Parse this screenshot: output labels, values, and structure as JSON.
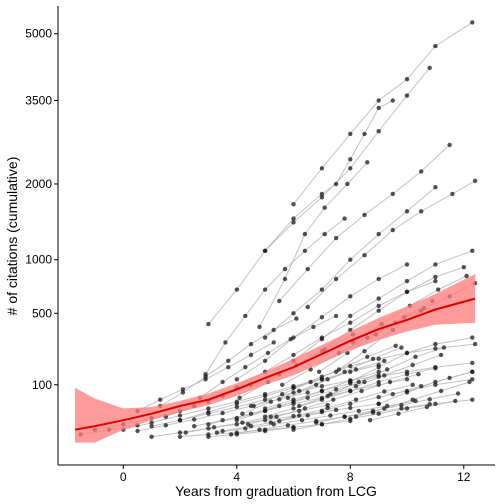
{
  "chart_data": {
    "type": "scatter",
    "title": "",
    "xlabel": "Years from graduation from LCG",
    "ylabel": "# of citations (cumulative)",
    "y_scale": "sqrt",
    "xlim": [
      -2.3,
      13.1
    ],
    "ylim": [
      -15,
      5700
    ],
    "x_ticks": [
      0,
      4,
      8,
      12
    ],
    "y_ticks": [
      100,
      500,
      1000,
      2000,
      3500,
      5000
    ],
    "grid": false,
    "legend": "none",
    "colors": {
      "points": "#1a1a1a",
      "lines": "#b3b3b3",
      "trend": "#e00000",
      "band": "#ff7a7a"
    },
    "trend": {
      "x": [
        -1.7,
        -1,
        0,
        1,
        2,
        3,
        4,
        5,
        6,
        7,
        8,
        9,
        10,
        11,
        12.4
      ],
      "y": [
        5,
        8,
        15,
        25,
        40,
        55,
        85,
        125,
        170,
        235,
        310,
        385,
        450,
        530,
        620
      ]
    },
    "band_upper": [
      90,
      58,
      35,
      38,
      52,
      72,
      105,
      150,
      210,
      285,
      370,
      465,
      555,
      660,
      850
    ],
    "band_lower": [
      0,
      0,
      5,
      15,
      28,
      42,
      65,
      100,
      135,
      190,
      255,
      315,
      370,
      415,
      430
    ],
    "series": [
      {
        "x": [
          6,
          7,
          8,
          9,
          10,
          11,
          12.3
        ],
        "y": [
          1700,
          2250,
          2850,
          3500,
          3950,
          4700,
          5280
        ]
      },
      {
        "x": [
          5,
          6,
          7,
          8,
          9,
          10,
          10.8
        ],
        "y": [
          1100,
          1450,
          1800,
          2250,
          2900,
          3600,
          4200
        ]
      },
      {
        "x": [
          3,
          4,
          5,
          6,
          7,
          7.5,
          8,
          8.5,
          9,
          9.5
        ],
        "y": [
          420,
          700,
          1100,
          1500,
          1850,
          2000,
          2400,
          2850,
          3350,
          3500
        ]
      },
      {
        "x": [
          4.8,
          5.7,
          6.4,
          7.1,
          7.9,
          8.6
        ],
        "y": [
          400,
          800,
          1300,
          1650,
          2000,
          2350
        ]
      },
      {
        "x": [
          5.5,
          6.5,
          7.5,
          8.5,
          9.5,
          10.5,
          11.5
        ],
        "y": [
          600,
          900,
          1250,
          1550,
          1850,
          2200,
          2650
        ]
      },
      {
        "x": [
          6.5,
          7.5,
          8.5,
          9.5,
          10.5,
          11.6,
          12.4
        ],
        "y": [
          550,
          800,
          1050,
          1350,
          1600,
          1850,
          2050
        ]
      },
      {
        "x": [
          5,
          6,
          7,
          8,
          9,
          10,
          11
        ],
        "y": [
          330,
          500,
          700,
          1000,
          1300,
          1600,
          1950
        ]
      },
      {
        "x": [
          2.9,
          3.6,
          4.3,
          5,
          5.7,
          6.4,
          7.1,
          7.8
        ],
        "y": [
          140,
          300,
          480,
          700,
          900,
          1100,
          1300,
          1500
        ]
      },
      {
        "x": [
          6,
          7,
          8,
          9,
          10,
          11,
          12.3
        ],
        "y": [
          200,
          320,
          480,
          620,
          780,
          950,
          1100
        ]
      },
      {
        "x": [
          7,
          8,
          9,
          10,
          11,
          12
        ],
        "y": [
          250,
          380,
          520,
          680,
          820,
          920
        ]
      },
      {
        "x": [
          4,
          5,
          6,
          7,
          8,
          9,
          10
        ],
        "y": [
          120,
          200,
          330,
          470,
          640,
          800,
          950
        ]
      },
      {
        "x": [
          7.5,
          8.5,
          9.5,
          10.5,
          11.5,
          12.4
        ],
        "y": [
          150,
          250,
          380,
          520,
          640,
          760
        ]
      },
      {
        "x": [
          3,
          4,
          5,
          6,
          7,
          8,
          9,
          10,
          11
        ],
        "y": [
          50,
          90,
          150,
          230,
          330,
          430,
          560,
          680,
          780
        ]
      },
      {
        "x": [
          1.3,
          2.1,
          2.9,
          3.7,
          4.5,
          5.3,
          6.1
        ],
        "y": [
          40,
          75,
          130,
          200,
          290,
          380,
          460
        ]
      },
      {
        "x": [
          8,
          9,
          10,
          11,
          12.3
        ],
        "y": [
          110,
          170,
          240,
          290,
          330
        ]
      },
      {
        "x": [
          6,
          7,
          8,
          9,
          10,
          11,
          12.4
        ],
        "y": [
          90,
          130,
          175,
          210,
          240,
          265,
          290
        ]
      },
      {
        "x": [
          9,
          10,
          11,
          12.3
        ],
        "y": [
          45,
          75,
          110,
          150
        ]
      },
      {
        "x": [
          5,
          6,
          7,
          8,
          9,
          10,
          11,
          12.3
        ],
        "y": [
          35,
          55,
          80,
          105,
          130,
          150,
          170,
          190
        ]
      },
      {
        "x": [
          7,
          8,
          9,
          10,
          11,
          12.3
        ],
        "y": [
          30,
          45,
          62,
          80,
          100,
          120
        ]
      },
      {
        "x": [
          6,
          7,
          8,
          9,
          10,
          11,
          12.3
        ],
        "y": [
          5,
          10,
          17,
          25,
          35,
          45,
          55
        ]
      },
      {
        "x": [
          0,
          1,
          2,
          3,
          4,
          5,
          6,
          7
        ],
        "y": [
          5,
          12,
          22,
          35,
          50,
          70,
          95,
          120
        ]
      },
      {
        "x": [
          2,
          3,
          4,
          5,
          6,
          7,
          8,
          9
        ],
        "y": [
          15,
          28,
          45,
          65,
          90,
          120,
          150,
          180
        ]
      },
      {
        "x": [
          3,
          4,
          5,
          6,
          7,
          8,
          9,
          10
        ],
        "y": [
          10,
          18,
          30,
          45,
          60,
          80,
          100,
          120
        ]
      },
      {
        "x": [
          1,
          2,
          3,
          4,
          5,
          6,
          7,
          8,
          9
        ],
        "y": [
          8,
          15,
          25,
          38,
          55,
          75,
          95,
          115,
          135
        ]
      },
      {
        "x": [
          4,
          5,
          6,
          7,
          8,
          9
        ],
        "y": [
          15,
          30,
          50,
          80,
          115,
          150
        ]
      },
      {
        "x": [
          5,
          6,
          7,
          8,
          9,
          10,
          11
        ],
        "y": [
          20,
          35,
          55,
          80,
          110,
          140,
          165
        ]
      },
      {
        "x": [
          2.5,
          3.5,
          4.5,
          5.5,
          6.5,
          7.5,
          8.5
        ],
        "y": [
          8,
          15,
          25,
          40,
          60,
          85,
          110
        ]
      },
      {
        "x": [
          3.3,
          4.3,
          5.3,
          6.3,
          7.3,
          8.3,
          9.3,
          10.3
        ],
        "y": [
          3,
          6,
          10,
          15,
          22,
          30,
          40,
          52
        ]
      },
      {
        "x": [
          4.2,
          5.2,
          6.2,
          7.2,
          8.2,
          9.2
        ],
        "y": [
          25,
          50,
          80,
          120,
          160,
          200
        ]
      },
      {
        "x": [
          1.5,
          2.5,
          3.5,
          4.5,
          5.5
        ],
        "y": [
          20,
          40,
          65,
          100,
          140
        ]
      },
      {
        "x": [
          3.8,
          4.8,
          5.8,
          6.8,
          7.8,
          8.8,
          9.8,
          10.8
        ],
        "y": [
          2,
          5,
          9,
          14,
          20,
          27,
          35,
          44
        ]
      },
      {
        "x": [
          2.2,
          3.2,
          4.2,
          5.2,
          6.2,
          7.2
        ],
        "y": [
          3,
          7,
          12,
          20,
          30,
          42
        ]
      },
      {
        "x": [
          4.6,
          5.6,
          6.6,
          7.6,
          8.6,
          9.6
        ],
        "y": [
          40,
          70,
          110,
          160,
          220,
          280
        ]
      },
      {
        "x": [
          5.8,
          6.8,
          7.8,
          8.8,
          9.8
        ],
        "y": [
          60,
          100,
          150,
          210,
          270
        ]
      },
      {
        "x": [
          0.5,
          1.5,
          2.5,
          3.5,
          4.5,
          5.5,
          6.5
        ],
        "y": [
          4,
          9,
          16,
          26,
          40,
          56,
          75
        ]
      },
      {
        "x": [
          -1,
          0,
          1,
          2
        ],
        "y": [
          5,
          10,
          18,
          30
        ]
      },
      {
        "x": [
          -1.5,
          -0.5,
          0.5
        ],
        "y": [
          2,
          5,
          9
        ]
      },
      {
        "x": [
          1,
          2,
          3,
          4,
          5,
          6,
          7,
          8,
          9
        ],
        "y": [
          1,
          3,
          6,
          10,
          15,
          21,
          28,
          36,
          45
        ]
      },
      {
        "x": [
          3,
          4,
          5,
          6
        ],
        "y": [
          1,
          2,
          4,
          7
        ]
      },
      {
        "x": [
          4.4,
          5.4,
          6.4,
          7.4,
          8.4,
          9.4,
          10.4
        ],
        "y": [
          10,
          20,
          35,
          55,
          80,
          110,
          140
        ]
      },
      {
        "x": [
          6.2,
          7.2,
          8.2,
          9.2,
          10.2,
          11.2
        ],
        "y": [
          40,
          65,
          95,
          135,
          180,
          230
        ]
      },
      {
        "x": [
          7.3,
          8.3,
          9.3,
          10.3,
          11.3
        ],
        "y": [
          70,
          110,
          160,
          220,
          270
        ]
      },
      {
        "x": [
          0.5,
          1.3,
          2.1,
          2.9,
          3.7,
          4.5,
          5.3
        ],
        "y": [
          30,
          55,
          85,
          120,
          170,
          230,
          300
        ]
      },
      {
        "x": [
          2.7,
          3.5,
          4.3,
          5.1,
          5.9,
          6.7,
          7.5
        ],
        "y": [
          60,
          110,
          170,
          240,
          320,
          400,
          480
        ]
      },
      {
        "x": [
          8.7,
          9.7,
          10.7,
          11.7
        ],
        "y": [
          15,
          25,
          38,
          52
        ]
      },
      {
        "x": [
          8.2,
          9.2,
          10.2,
          11.2,
          12.2
        ],
        "y": [
          20,
          35,
          55,
          80,
          110
        ]
      },
      {
        "x": [
          9.5,
          10.5,
          11.5,
          12.3
        ],
        "y": [
          70,
          95,
          125,
          150
        ]
      },
      {
        "x": [
          2,
          3,
          4,
          5,
          6,
          7,
          8
        ],
        "y": [
          1,
          2,
          3,
          5,
          7,
          10,
          14
        ]
      },
      {
        "x": [
          3.5,
          4.5,
          5.5,
          6.5,
          7.5
        ],
        "y": [
          4,
          8,
          14,
          22,
          32
        ]
      },
      {
        "x": [
          5.2,
          6.2,
          7.2,
          8.2,
          9.2,
          10.2
        ],
        "y": [
          12,
          22,
          36,
          55,
          78,
          100
        ]
      },
      {
        "x": [
          6.8,
          7.8,
          8.8,
          9.8,
          10.8,
          11.8
        ],
        "y": [
          12,
          20,
          30,
          42,
          56,
          72
        ]
      },
      {
        "x": [
          4.1,
          5.1,
          6.1,
          7.1,
          8.1
        ],
        "y": [
          60,
          110,
          180,
          260,
          350
        ]
      },
      {
        "x": [
          5.6,
          6.6,
          7.6,
          8.6,
          9.6,
          10.6
        ],
        "y": [
          100,
          160,
          240,
          330,
          430,
          540
        ]
      },
      {
        "x": [
          6.9,
          7.9,
          8.9,
          9.9,
          10.9
        ],
        "y": [
          150,
          240,
          350,
          470,
          600
        ]
      },
      {
        "x": [
          8.1,
          9.1,
          10.1,
          11.1,
          12.1
        ],
        "y": [
          300,
          420,
          560,
          700,
          830
        ]
      }
    ]
  }
}
